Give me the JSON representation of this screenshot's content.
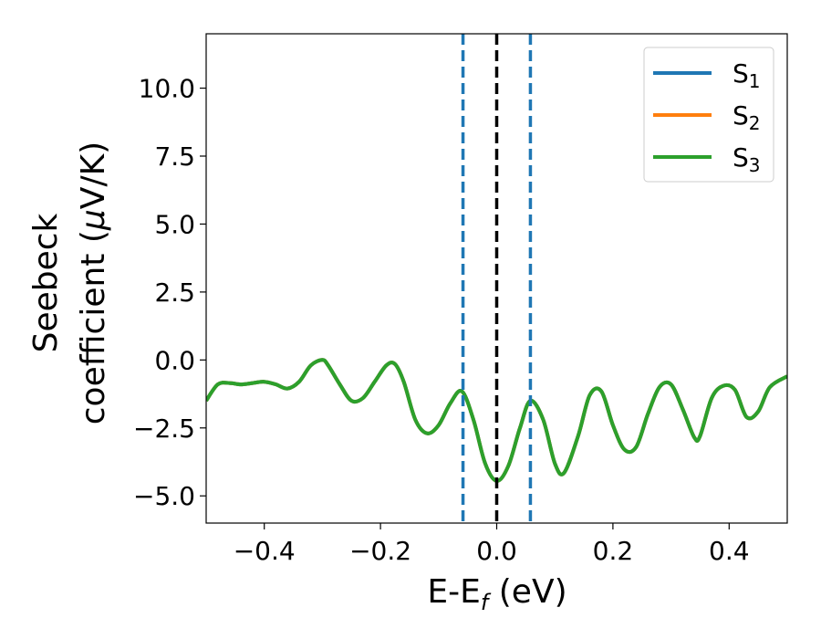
{
  "chart_data": {
    "type": "line",
    "xlabel": "E-E",
    "xlabel_sub": "f",
    "xlabel_unit": " (eV)",
    "ylabel_line1": "Seebeck",
    "ylabel_line2": "coefficient  (",
    "ylabel_mu": "μ",
    "ylabel_unit": "V/K)",
    "xlim": [
      -0.5,
      0.5
    ],
    "ylim": [
      -6.0,
      12.0
    ],
    "xticks": [
      -0.4,
      -0.2,
      0.0,
      0.2,
      0.4
    ],
    "xtick_labels": [
      "−0.4",
      "−0.2",
      "0.0",
      "0.2",
      "0.4"
    ],
    "yticks": [
      -5.0,
      -2.5,
      0.0,
      2.5,
      5.0,
      7.5,
      10.0
    ],
    "ytick_labels": [
      "−5.0",
      "−2.5",
      "0.0",
      "2.5",
      "5.0",
      "7.5",
      "10.0"
    ],
    "legend_position": "top-right",
    "series": [
      {
        "name": "S",
        "subscript": "1",
        "color": "#1f77b4"
      },
      {
        "name": "S",
        "subscript": "2",
        "color": "#ff7f0e"
      },
      {
        "name": "S",
        "subscript": "3",
        "color": "#2ca02c"
      }
    ],
    "x": [
      -0.5,
      -0.48,
      -0.46,
      -0.44,
      -0.42,
      -0.4,
      -0.38,
      -0.36,
      -0.34,
      -0.32,
      -0.3,
      -0.29,
      -0.27,
      -0.25,
      -0.23,
      -0.21,
      -0.19,
      -0.175,
      -0.16,
      -0.14,
      -0.12,
      -0.1,
      -0.08,
      -0.06,
      -0.04,
      -0.02,
      0.0,
      0.02,
      0.04,
      0.058,
      0.08,
      0.1,
      0.116,
      0.14,
      0.16,
      0.18,
      0.2,
      0.22,
      0.24,
      0.26,
      0.28,
      0.3,
      0.32,
      0.34,
      0.35,
      0.37,
      0.39,
      0.41,
      0.43,
      0.45,
      0.47,
      0.5
    ],
    "y": [
      -1.5,
      -0.9,
      -0.85,
      -0.9,
      -0.85,
      -0.8,
      -0.9,
      -1.05,
      -0.8,
      -0.2,
      0.0,
      -0.2,
      -0.9,
      -1.5,
      -1.4,
      -0.8,
      -0.2,
      -0.15,
      -0.8,
      -2.2,
      -2.7,
      -2.4,
      -1.6,
      -1.15,
      -2.2,
      -3.8,
      -4.45,
      -3.9,
      -2.5,
      -1.5,
      -2.2,
      -3.8,
      -4.15,
      -2.8,
      -1.3,
      -1.15,
      -2.4,
      -3.3,
      -3.2,
      -2.0,
      -1.0,
      -0.9,
      -1.8,
      -2.85,
      -2.8,
      -1.4,
      -0.95,
      -1.1,
      -2.1,
      -1.9,
      -1.0,
      -0.6
    ],
    "vlines": [
      {
        "x": -0.058,
        "color": "#1f77b4",
        "style": "dashed"
      },
      {
        "x": 0.058,
        "color": "#1f77b4",
        "style": "dashed"
      },
      {
        "x": 0.0,
        "color": "#000000",
        "style": "dashed"
      }
    ],
    "grid": false
  }
}
